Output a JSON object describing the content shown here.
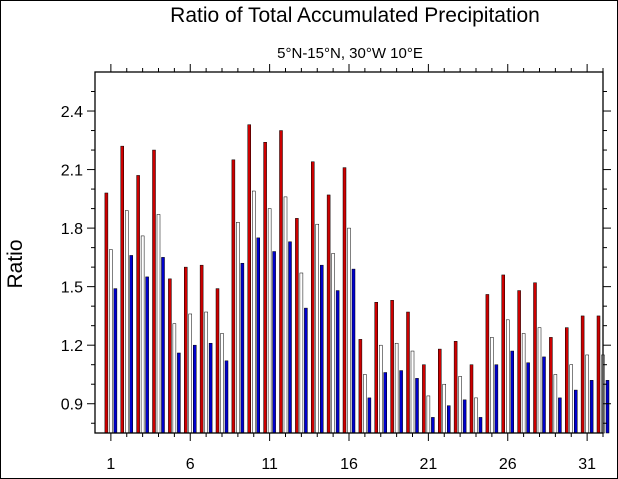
{
  "chart_data": {
    "type": "bar",
    "title": "Ratio of Total Accumulated Precipitation",
    "subtitle": "5°N-15°N, 30°W 10°E",
    "xlabel": "",
    "ylabel": "Ratio",
    "ylim": [
      0.75,
      2.6
    ],
    "xlim": [
      0,
      32
    ],
    "yticks": [
      0.9,
      1.2,
      1.5,
      1.8,
      2.1,
      2.4
    ],
    "ytick_labels": [
      "0.9",
      "1.2",
      "1.5",
      "1.8",
      "2.1",
      "2.4"
    ],
    "xticks": [
      1,
      6,
      11,
      16,
      21,
      26,
      31
    ],
    "xtick_labels": [
      "1",
      "6",
      "11",
      "16",
      "21",
      "26",
      "31"
    ],
    "categories": [
      1,
      2,
      3,
      4,
      5,
      6,
      7,
      8,
      9,
      10,
      11,
      12,
      13,
      14,
      15,
      16,
      17,
      18,
      19,
      20,
      21,
      22,
      23,
      24,
      25,
      26,
      27,
      28,
      29,
      30,
      31,
      32
    ],
    "series": [
      {
        "name": "red",
        "color": "#cc0000",
        "values": [
          1.98,
          2.22,
          2.07,
          2.2,
          1.54,
          1.6,
          1.61,
          1.49,
          2.15,
          2.33,
          2.24,
          2.3,
          1.85,
          2.14,
          1.97,
          2.11,
          1.23,
          1.42,
          1.43,
          1.37,
          1.1,
          1.18,
          1.22,
          1.1,
          1.46,
          1.56,
          1.48,
          1.52,
          1.24,
          1.29,
          1.35,
          1.35
        ]
      },
      {
        "name": "white",
        "color": "#ffffff",
        "values": [
          1.69,
          1.89,
          1.76,
          1.87,
          1.31,
          1.36,
          1.37,
          1.26,
          1.83,
          1.99,
          1.9,
          1.96,
          1.57,
          1.82,
          1.67,
          1.8,
          1.05,
          1.2,
          1.21,
          1.17,
          0.94,
          1.0,
          1.04,
          0.93,
          1.24,
          1.33,
          1.26,
          1.29,
          1.05,
          1.1,
          1.15,
          1.15
        ]
      },
      {
        "name": "blue",
        "color": "#0000cc",
        "values": [
          1.49,
          1.66,
          1.55,
          1.65,
          1.16,
          1.2,
          1.21,
          1.12,
          1.62,
          1.75,
          1.68,
          1.73,
          1.39,
          1.61,
          1.48,
          1.59,
          0.93,
          1.06,
          1.07,
          1.03,
          0.83,
          0.89,
          0.92,
          0.83,
          1.1,
          1.17,
          1.11,
          1.14,
          0.93,
          0.97,
          1.02,
          1.02
        ]
      }
    ],
    "grid": false,
    "legend": "none"
  }
}
